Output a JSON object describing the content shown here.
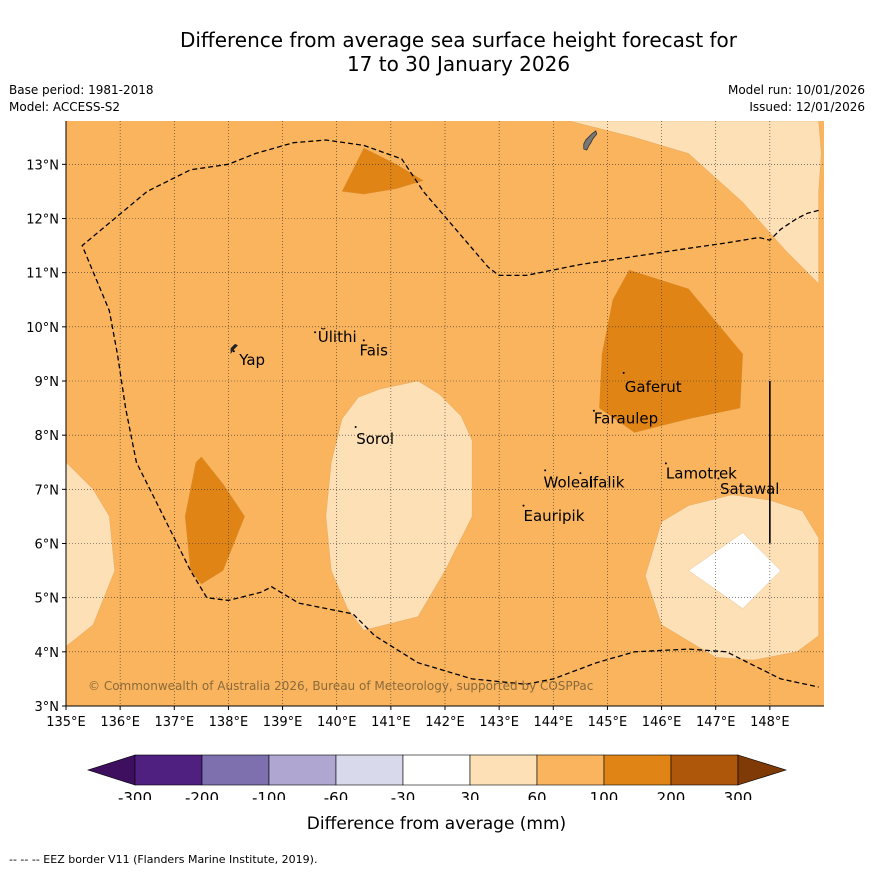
{
  "chart_data": {
    "type": "heatmap",
    "title_line1": "Difference from average sea surface height forecast for",
    "title_line2": "17 to 30 January 2026",
    "base_period": "Base period: 1981-2018",
    "model": "Model: ACCESS-S2",
    "model_run": "Model run: 10/01/2026",
    "issued": "Issued: 12/01/2026",
    "x_range": [
      135,
      149
    ],
    "y_range": [
      3,
      13.8
    ],
    "x_ticks": [
      {
        "value": 135,
        "label": "135°E"
      },
      {
        "value": 136,
        "label": "136°E"
      },
      {
        "value": 137,
        "label": "137°E"
      },
      {
        "value": 138,
        "label": "138°E"
      },
      {
        "value": 139,
        "label": "139°E"
      },
      {
        "value": 140,
        "label": "140°E"
      },
      {
        "value": 141,
        "label": "141°E"
      },
      {
        "value": 142,
        "label": "142°E"
      },
      {
        "value": 143,
        "label": "143°E"
      },
      {
        "value": 144,
        "label": "144°E"
      },
      {
        "value": 145,
        "label": "145°E"
      },
      {
        "value": 146,
        "label": "146°E"
      },
      {
        "value": 147,
        "label": "147°E"
      },
      {
        "value": 148,
        "label": "148°E"
      }
    ],
    "y_ticks": [
      {
        "value": 3,
        "label": "3°N"
      },
      {
        "value": 4,
        "label": "4°N"
      },
      {
        "value": 5,
        "label": "5°N"
      },
      {
        "value": 6,
        "label": "6°N"
      },
      {
        "value": 7,
        "label": "7°N"
      },
      {
        "value": 8,
        "label": "8°N"
      },
      {
        "value": 9,
        "label": "9°N"
      },
      {
        "value": 10,
        "label": "10°N"
      },
      {
        "value": 11,
        "label": "11°N"
      },
      {
        "value": 12,
        "label": "12°N"
      },
      {
        "value": 13,
        "label": "13°N"
      }
    ],
    "background_level": "60 to 100",
    "regions": [
      {
        "name": "region-light-west",
        "level": "30 to 60",
        "color": "#fde0b6",
        "points": [
          [
            135,
            7.5
          ],
          [
            135.5,
            7
          ],
          [
            135.8,
            6.5
          ],
          [
            135.9,
            5.5
          ],
          [
            135.5,
            4.5
          ],
          [
            135,
            4.1
          ]
        ]
      },
      {
        "name": "region-light-central",
        "level": "30 to 60",
        "color": "#fde0b6",
        "points": [
          [
            140.4,
            8.7
          ],
          [
            140.8,
            8.85
          ],
          [
            141.5,
            9
          ],
          [
            141.9,
            8.75
          ],
          [
            142.3,
            8.35
          ],
          [
            142.5,
            7.9
          ],
          [
            142.5,
            6.5
          ],
          [
            142,
            5.5
          ],
          [
            141.5,
            4.65
          ],
          [
            141.1,
            4.55
          ],
          [
            140.5,
            4.4
          ],
          [
            140.2,
            4.8
          ],
          [
            139.9,
            5.5
          ],
          [
            139.8,
            6.5
          ],
          [
            139.9,
            7.5
          ],
          [
            140.1,
            8.3
          ]
        ]
      },
      {
        "name": "region-light-northeast",
        "level": "30 to 60",
        "color": "#fde0b6",
        "points": [
          [
            144.3,
            13.8
          ],
          [
            145.5,
            13.5
          ],
          [
            146.5,
            13.2
          ],
          [
            147.5,
            12.3
          ],
          [
            148.3,
            11.4
          ],
          [
            148.9,
            10.8
          ],
          [
            148.9,
            12.5
          ],
          [
            148.95,
            13.2
          ],
          [
            148.9,
            13.8
          ]
        ]
      },
      {
        "name": "region-light-southeast",
        "level": "30 to 60",
        "color": "#fde0b6",
        "points": [
          [
            146,
            6.4
          ],
          [
            146.5,
            6.7
          ],
          [
            147.3,
            6.9
          ],
          [
            148,
            6.8
          ],
          [
            148.6,
            6.6
          ],
          [
            148.9,
            6.1
          ],
          [
            148.9,
            4.3
          ],
          [
            148.5,
            4
          ],
          [
            147.7,
            3.85
          ],
          [
            147,
            3.9
          ],
          [
            146.5,
            4.2
          ],
          [
            146,
            4.5
          ],
          [
            145.7,
            5.4
          ]
        ]
      },
      {
        "name": "region-white-southeast",
        "level": "-30 to 30",
        "color": "#ffffff",
        "points": [
          [
            147.5,
            6.2
          ],
          [
            148.2,
            5.5
          ],
          [
            147.5,
            4.8
          ],
          [
            146.5,
            5.5
          ]
        ]
      },
      {
        "name": "region-dark-north",
        "level": "100 to 200",
        "color": "#e08515",
        "points": [
          [
            140.5,
            13.3
          ],
          [
            141.1,
            13
          ],
          [
            141.6,
            12.7
          ],
          [
            141.1,
            12.55
          ],
          [
            140.5,
            12.45
          ],
          [
            140.1,
            12.5
          ]
        ]
      },
      {
        "name": "region-dark-west",
        "level": "100 to 200",
        "color": "#e08515",
        "points": [
          [
            137.5,
            7.6
          ],
          [
            137.9,
            7.1
          ],
          [
            138.3,
            6.5
          ],
          [
            137.9,
            5.5
          ],
          [
            137.5,
            5.25
          ],
          [
            137.3,
            5.5
          ],
          [
            137.2,
            6.5
          ],
          [
            137.4,
            7.5
          ]
        ]
      },
      {
        "name": "region-dark-east",
        "level": "100 to 200",
        "color": "#e08515",
        "points": [
          [
            145.4,
            11.05
          ],
          [
            146.5,
            10.7
          ],
          [
            147.5,
            9.5
          ],
          [
            147.45,
            8.5
          ],
          [
            146.5,
            8.3
          ],
          [
            145.5,
            8.05
          ],
          [
            144.85,
            8.5
          ],
          [
            144.9,
            9.5
          ],
          [
            145.1,
            10.5
          ]
        ]
      }
    ],
    "eez_border": [
      [
        148.9,
        12.15
      ],
      [
        148.7,
        12.1
      ],
      [
        148.5,
        12
      ],
      [
        148.2,
        11.8
      ],
      [
        148,
        11.6
      ],
      [
        147.8,
        11.65
      ],
      [
        147.2,
        11.55
      ],
      [
        146.5,
        11.45
      ],
      [
        145.5,
        11.3
      ],
      [
        144.5,
        11.15
      ],
      [
        143.5,
        10.95
      ],
      [
        143,
        10.95
      ],
      [
        142.8,
        11.1
      ],
      [
        142.2,
        11.8
      ],
      [
        141.6,
        12.5
      ],
      [
        141.2,
        13.1
      ],
      [
        140.5,
        13.35
      ],
      [
        139.8,
        13.45
      ],
      [
        139.2,
        13.4
      ],
      [
        138.5,
        13.2
      ],
      [
        138,
        13
      ],
      [
        137.3,
        12.9
      ],
      [
        136.5,
        12.5
      ],
      [
        135.9,
        12
      ],
      [
        135.3,
        11.5
      ],
      [
        135.8,
        10.3
      ],
      [
        135.95,
        9.5
      ],
      [
        136.1,
        8.5
      ],
      [
        136.3,
        7.5
      ],
      [
        136.8,
        6.5
      ],
      [
        137.3,
        5.5
      ],
      [
        137.6,
        5
      ],
      [
        138,
        4.95
      ],
      [
        138.6,
        5.1
      ],
      [
        138.8,
        5.2
      ],
      [
        139.3,
        4.9
      ],
      [
        139.8,
        4.8
      ],
      [
        140.3,
        4.7
      ],
      [
        140.7,
        4.3
      ],
      [
        141.5,
        3.8
      ],
      [
        142.5,
        3.5
      ],
      [
        143.5,
        3.4
      ],
      [
        144,
        3.5
      ],
      [
        144.8,
        3.8
      ],
      [
        145.5,
        4
      ],
      [
        146.5,
        4.05
      ],
      [
        147.2,
        4
      ],
      [
        147.7,
        3.75
      ],
      [
        148.2,
        3.5
      ],
      [
        148.9,
        3.35
      ]
    ],
    "locations": [
      {
        "name": "Ulithi",
        "label": "Ulithi",
        "display": "Ŭlithi",
        "lon": 139.6,
        "lat": 9.9,
        "label_lon": 139.65,
        "label_lat": 9.8
      },
      {
        "name": "Fais",
        "label": "Fais",
        "lon": 140.5,
        "lat": 9.75,
        "label_lon": 140.42,
        "label_lat": 9.55
      },
      {
        "name": "Yap",
        "label": "Yap",
        "lon": 138.1,
        "lat": 9.55,
        "label_lon": 138.2,
        "label_lat": 9.38
      },
      {
        "name": "Gaferut",
        "label": "Gaferut",
        "lon": 145.3,
        "lat": 9.15,
        "label_lon": 145.32,
        "label_lat": 8.88
      },
      {
        "name": "Faraulep",
        "label": "Faraulep",
        "lon": 144.75,
        "lat": 8.45,
        "label_lon": 144.75,
        "label_lat": 8.3
      },
      {
        "name": "Sorol",
        "label": "Sorol",
        "lon": 140.35,
        "lat": 8.15,
        "label_lon": 140.36,
        "label_lat": 7.92
      },
      {
        "name": "Woleai",
        "label": "Woleai",
        "lon": 143.85,
        "lat": 7.35,
        "label_lon": 143.82,
        "label_lat": 7.12
      },
      {
        "name": "Ifalik",
        "label": "Ifalik",
        "lon": 144.5,
        "lat": 7.3,
        "label_lon": 144.65,
        "label_lat": 7.12
      },
      {
        "name": "Lamotrek",
        "label": "Lamotrek",
        "lon": 146.08,
        "lat": 7.48,
        "label_lon": 146.08,
        "label_lat": 7.28
      },
      {
        "name": "Satawal",
        "label": "Satawal",
        "lon": 147.05,
        "lat": 7.2,
        "label_lon": 147.08,
        "label_lat": 7.0
      },
      {
        "name": "Eauripik",
        "label": "Eauripik",
        "lon": 143.45,
        "lat": 6.7,
        "label_lon": 143.45,
        "label_lat": 6.5
      }
    ],
    "meridian_segment": {
      "lon": 148,
      "lat_start": 6.0,
      "lat_end": 9.0
    },
    "copyright": "© Commonwealth of Australia 2026, Bureau of Meteorology, supported by COSPPac",
    "colorbar": {
      "label": "Difference from average (mm)",
      "tick_labels": [
        "-300",
        "-200",
        "-100",
        "-60",
        "-30",
        "30",
        "60",
        "100",
        "200",
        "300"
      ],
      "colors": [
        "#502080",
        "#7e6fae",
        "#afa7d1",
        "#d9d9ec",
        "#ffffff",
        "#fde0b6",
        "#fab45e",
        "#e08515",
        "#ae570b"
      ],
      "under_color": "#3d0f5e",
      "over_color": "#7f3a05"
    },
    "footnote": "--  --  -- EEZ border V11 (Flanders Marine Institute, 2019)."
  },
  "colors": {
    "background_fill": "#fab45e",
    "grid": "#333333",
    "land": "#777777"
  }
}
